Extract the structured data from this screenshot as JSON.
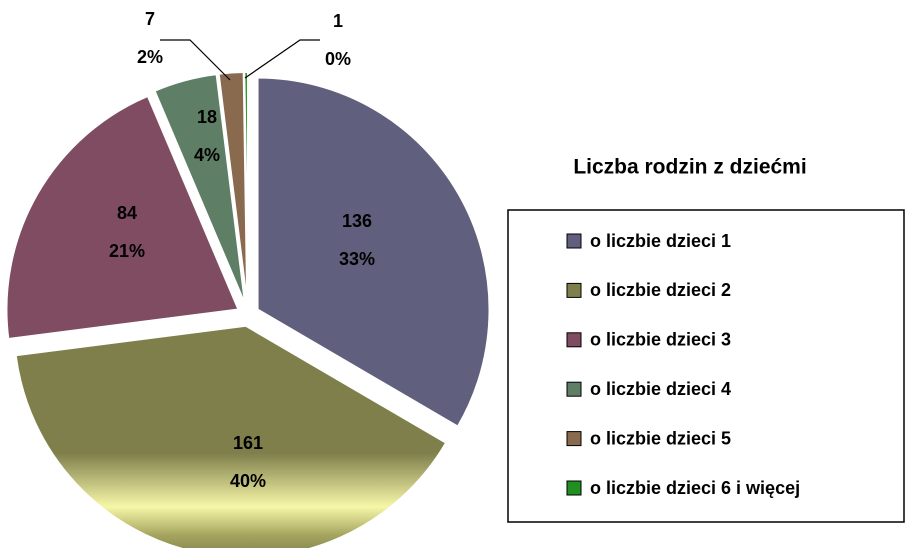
{
  "chart_data": {
    "type": "pie",
    "title": "Liczba rodzin z dziećmi",
    "categories": [
      "o liczbie dzieci 1",
      "o liczbie dzieci 2",
      "o liczbie dzieci 3",
      "o liczbie dzieci 4",
      "o liczbie dzieci 5",
      "o liczbie dzieci 6 i więcej"
    ],
    "values": [
      136,
      161,
      84,
      18,
      7,
      1
    ],
    "percent_labels": [
      "33%",
      "40%",
      "21%",
      "4%",
      "2%",
      "0%"
    ],
    "colors": [
      "#60607e",
      "#7f7f4c",
      "#7f4c62",
      "#5e7f66",
      "#8a6a4e",
      "#1f8f1f"
    ],
    "legend": "right"
  }
}
